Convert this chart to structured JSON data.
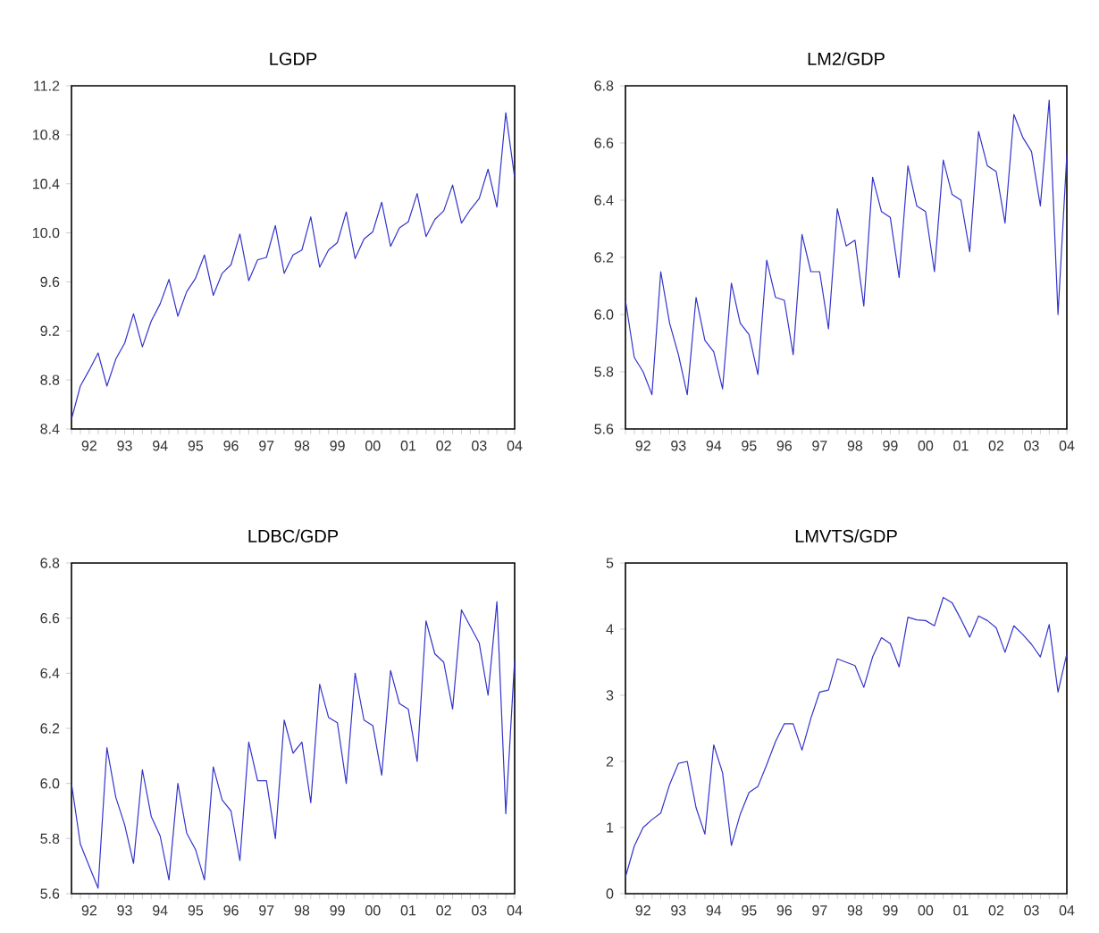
{
  "chart_data": [
    {
      "type": "line",
      "title": "LGDP",
      "color": "#3333cc",
      "ylim": [
        8.4,
        11.2
      ],
      "categories": [
        null,
        null,
        "92",
        null,
        null,
        null,
        "93",
        null,
        null,
        null,
        "94",
        null,
        null,
        null,
        "95",
        null,
        null,
        null,
        "96",
        null,
        null,
        null,
        "97",
        null,
        null,
        null,
        "98",
        null,
        null,
        null,
        "99",
        null,
        null,
        null,
        "00",
        null,
        null,
        null,
        "01",
        null,
        null,
        null,
        "02",
        null,
        null,
        null,
        "03",
        null,
        null,
        null,
        "04"
      ],
      "yticks": [
        {
          "value": 8.4,
          "label": "8.4"
        },
        {
          "value": 8.8,
          "label": "8.8"
        },
        {
          "value": 9.2,
          "label": "9.2"
        },
        {
          "value": 9.6,
          "label": "9.6"
        },
        {
          "value": 10.0,
          "label": "10.0"
        },
        {
          "value": 10.4,
          "label": "10.4"
        },
        {
          "value": 10.8,
          "label": "10.8"
        },
        {
          "value": 11.2,
          "label": "11.2"
        }
      ],
      "values": [
        8.48,
        8.75,
        8.88,
        9.02,
        8.75,
        8.97,
        9.1,
        9.34,
        9.07,
        9.28,
        9.42,
        9.62,
        9.32,
        9.52,
        9.63,
        9.82,
        9.49,
        9.67,
        9.74,
        9.99,
        9.61,
        9.78,
        9.8,
        10.06,
        9.67,
        9.82,
        9.86,
        10.13,
        9.72,
        9.86,
        9.92,
        10.17,
        9.79,
        9.95,
        10.01,
        10.25,
        9.89,
        10.04,
        10.09,
        10.32,
        9.97,
        10.11,
        10.18,
        10.39,
        10.08,
        10.19,
        10.28,
        10.52,
        10.21,
        10.98,
        10.45
      ]
    },
    {
      "type": "line",
      "title": "LM2/GDP",
      "color": "#3333cc",
      "ylim": [
        5.6,
        6.8
      ],
      "categories": [
        null,
        null,
        "92",
        null,
        null,
        null,
        "93",
        null,
        null,
        null,
        "94",
        null,
        null,
        null,
        "95",
        null,
        null,
        null,
        "96",
        null,
        null,
        null,
        "97",
        null,
        null,
        null,
        "98",
        null,
        null,
        null,
        "99",
        null,
        null,
        null,
        "00",
        null,
        null,
        null,
        "01",
        null,
        null,
        null,
        "02",
        null,
        null,
        null,
        "03",
        null,
        null,
        null,
        "04"
      ],
      "yticks": [
        {
          "value": 5.6,
          "label": "5.6"
        },
        {
          "value": 5.8,
          "label": "5.8"
        },
        {
          "value": 6.0,
          "label": "6.0"
        },
        {
          "value": 6.2,
          "label": "6.2"
        },
        {
          "value": 6.4,
          "label": "6.4"
        },
        {
          "value": 6.6,
          "label": "6.6"
        },
        {
          "value": 6.8,
          "label": "6.8"
        }
      ],
      "values": [
        6.05,
        5.85,
        5.8,
        5.72,
        6.15,
        5.97,
        5.86,
        5.72,
        6.06,
        5.91,
        5.87,
        5.74,
        6.11,
        5.97,
        5.93,
        5.79,
        6.19,
        6.06,
        6.05,
        5.86,
        6.28,
        6.15,
        6.15,
        5.95,
        6.37,
        6.24,
        6.26,
        6.03,
        6.48,
        6.36,
        6.34,
        6.13,
        6.52,
        6.38,
        6.36,
        6.15,
        6.54,
        6.42,
        6.4,
        6.22,
        6.64,
        6.52,
        6.5,
        6.32,
        6.7,
        6.62,
        6.57,
        6.38,
        6.75,
        6.0,
        6.56
      ]
    },
    {
      "type": "line",
      "title": "LDBC/GDP",
      "color": "#3333cc",
      "ylim": [
        5.6,
        6.8
      ],
      "categories": [
        null,
        null,
        "92",
        null,
        null,
        null,
        "93",
        null,
        null,
        null,
        "94",
        null,
        null,
        null,
        "95",
        null,
        null,
        null,
        "96",
        null,
        null,
        null,
        "97",
        null,
        null,
        null,
        "98",
        null,
        null,
        null,
        "99",
        null,
        null,
        null,
        "00",
        null,
        null,
        null,
        "01",
        null,
        null,
        null,
        "02",
        null,
        null,
        null,
        "03",
        null,
        null,
        null,
        "04"
      ],
      "yticks": [
        {
          "value": 5.6,
          "label": "5.6"
        },
        {
          "value": 5.8,
          "label": "5.8"
        },
        {
          "value": 6.0,
          "label": "6.0"
        },
        {
          "value": 6.2,
          "label": "6.2"
        },
        {
          "value": 6.4,
          "label": "6.4"
        },
        {
          "value": 6.6,
          "label": "6.6"
        },
        {
          "value": 6.8,
          "label": "6.8"
        }
      ],
      "values": [
        6.0,
        5.78,
        5.7,
        5.62,
        6.13,
        5.95,
        5.85,
        5.71,
        6.05,
        5.88,
        5.81,
        5.65,
        6.0,
        5.82,
        5.76,
        5.65,
        6.06,
        5.94,
        5.9,
        5.72,
        6.15,
        6.01,
        6.01,
        5.8,
        6.23,
        6.11,
        6.15,
        5.93,
        6.36,
        6.24,
        6.22,
        6.0,
        6.4,
        6.23,
        6.21,
        6.03,
        6.41,
        6.29,
        6.27,
        6.08,
        6.59,
        6.47,
        6.44,
        6.27,
        6.63,
        6.57,
        6.51,
        6.32,
        6.66,
        5.89,
        6.45
      ]
    },
    {
      "type": "line",
      "title": "LMVTS/GDP",
      "color": "#3333cc",
      "ylim": [
        0,
        5
      ],
      "categories": [
        null,
        null,
        "92",
        null,
        null,
        null,
        "93",
        null,
        null,
        null,
        "94",
        null,
        null,
        null,
        "95",
        null,
        null,
        null,
        "96",
        null,
        null,
        null,
        "97",
        null,
        null,
        null,
        "98",
        null,
        null,
        null,
        "99",
        null,
        null,
        null,
        "00",
        null,
        null,
        null,
        "01",
        null,
        null,
        null,
        "02",
        null,
        null,
        null,
        "03",
        null,
        null,
        null,
        "04"
      ],
      "yticks": [
        0,
        1,
        2,
        3,
        4,
        5
      ],
      "values": [
        0.25,
        0.72,
        1.0,
        1.12,
        1.22,
        1.65,
        1.97,
        2.0,
        1.3,
        0.9,
        2.25,
        1.83,
        0.73,
        1.2,
        1.53,
        1.62,
        1.95,
        2.3,
        2.57,
        2.57,
        2.17,
        2.65,
        3.05,
        3.08,
        3.55,
        3.5,
        3.45,
        3.12,
        3.58,
        3.87,
        3.78,
        3.43,
        4.18,
        4.14,
        4.13,
        4.05,
        4.48,
        4.4,
        4.15,
        3.88,
        4.2,
        4.13,
        4.02,
        3.65,
        4.05,
        3.92,
        3.77,
        3.58,
        4.07,
        3.05,
        3.63
      ]
    }
  ]
}
